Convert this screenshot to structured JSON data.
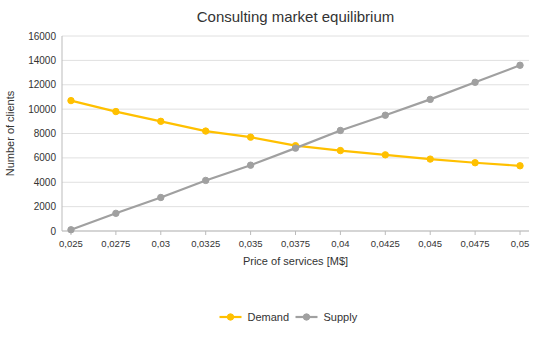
{
  "chart_data": {
    "type": "line",
    "title": "Consulting market equilibrium",
    "xlabel": "Price of services [M$]",
    "ylabel": "Number of clients",
    "x": [
      0.025,
      0.0275,
      0.03,
      0.0325,
      0.035,
      0.0375,
      0.04,
      0.0425,
      0.045,
      0.0475,
      0.05
    ],
    "series": [
      {
        "name": "Demand",
        "color": "#FFC000",
        "marker": "circle",
        "values": [
          10700,
          9800,
          9000,
          8200,
          7700,
          7000,
          6600,
          6250,
          5900,
          5600,
          5350
        ]
      },
      {
        "name": "Supply",
        "color": "#A0A0A0",
        "marker": "circle",
        "values": [
          100,
          1450,
          2750,
          4150,
          5400,
          6800,
          8250,
          9500,
          10800,
          12200,
          13600
        ]
      }
    ],
    "xlim": [
      0.0245,
      0.0505
    ],
    "xticks": [
      {
        "value": 0.025,
        "label": "0,025"
      },
      {
        "value": 0.0275,
        "label": "0,0275"
      },
      {
        "value": 0.03,
        "label": "0,03"
      },
      {
        "value": 0.0325,
        "label": "0,0325"
      },
      {
        "value": 0.035,
        "label": "0,035"
      },
      {
        "value": 0.0375,
        "label": "0,0375"
      },
      {
        "value": 0.04,
        "label": "0,04"
      },
      {
        "value": 0.0425,
        "label": "0,0425"
      },
      {
        "value": 0.045,
        "label": "0,045"
      },
      {
        "value": 0.0475,
        "label": "0,0475"
      },
      {
        "value": 0.05,
        "label": "0,05"
      }
    ],
    "ylim": [
      0,
      16000
    ],
    "yticks": [
      0,
      2000,
      4000,
      6000,
      8000,
      10000,
      12000,
      14000,
      16000
    ],
    "grid": true,
    "legend": "bottom"
  }
}
